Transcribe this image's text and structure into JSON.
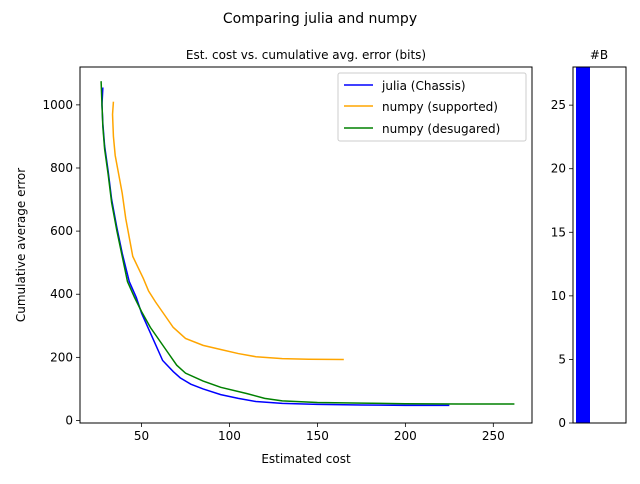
{
  "figure": {
    "suptitle": "Comparing julia and numpy"
  },
  "chart_data": [
    {
      "type": "line",
      "title": "Est. cost vs. cumulative avg. error (bits)",
      "xlabel": "Estimated cost",
      "ylabel": "Cumulative average error",
      "xlim": [
        15,
        272
      ],
      "ylim": [
        -8,
        1120
      ],
      "xticks": [
        "50",
        "100",
        "150",
        "200",
        "250"
      ],
      "yticks": [
        "0",
        "200",
        "400",
        "600",
        "800",
        "1000"
      ],
      "grid": false,
      "legend_position": "top-right",
      "series": [
        {
          "name": "julia (Chassis)",
          "color": "#0000ff",
          "points": [
            [
              28,
              1055
            ],
            [
              27.5,
              1000
            ],
            [
              28,
              940
            ],
            [
              29,
              870
            ],
            [
              31,
              790
            ],
            [
              33,
              700
            ],
            [
              36,
              610
            ],
            [
              39,
              530
            ],
            [
              43,
              440
            ],
            [
              47,
              390
            ],
            [
              50,
              340
            ],
            [
              54,
              290
            ],
            [
              58,
              240
            ],
            [
              62,
              190
            ],
            [
              68,
              155
            ],
            [
              72,
              135
            ],
            [
              78,
              115
            ],
            [
              85,
              100
            ],
            [
              95,
              82
            ],
            [
              105,
              70
            ],
            [
              115,
              60
            ],
            [
              130,
              54
            ],
            [
              150,
              51
            ],
            [
              175,
              49
            ],
            [
              200,
              48
            ],
            [
              225,
              48
            ]
          ]
        },
        {
          "name": "numpy (supported)",
          "color": "#ffa500",
          "points": [
            [
              34,
              1010
            ],
            [
              33.5,
              970
            ],
            [
              34,
              900
            ],
            [
              35,
              840
            ],
            [
              37,
              780
            ],
            [
              39,
              720
            ],
            [
              41,
              640
            ],
            [
              43,
              580
            ],
            [
              45,
              520
            ],
            [
              48,
              485
            ],
            [
              51,
              450
            ],
            [
              54,
              410
            ],
            [
              58,
              375
            ],
            [
              63,
              335
            ],
            [
              68,
              295
            ],
            [
              75,
              260
            ],
            [
              85,
              238
            ],
            [
              95,
              225
            ],
            [
              105,
              212
            ],
            [
              115,
              202
            ],
            [
              130,
              196
            ],
            [
              145,
              194
            ],
            [
              165,
              193
            ]
          ]
        },
        {
          "name": "numpy (desugared)",
          "color": "#008000",
          "points": [
            [
              27,
              1075
            ],
            [
              27.5,
              1000
            ],
            [
              28,
              930
            ],
            [
              29,
              860
            ],
            [
              31,
              780
            ],
            [
              33,
              690
            ],
            [
              36,
              600
            ],
            [
              39,
              520
            ],
            [
              42,
              440
            ],
            [
              46,
              390
            ],
            [
              50,
              345
            ],
            [
              55,
              295
            ],
            [
              60,
              255
            ],
            [
              65,
              215
            ],
            [
              70,
              175
            ],
            [
              75,
              150
            ],
            [
              85,
              125
            ],
            [
              95,
              105
            ],
            [
              110,
              85
            ],
            [
              120,
              70
            ],
            [
              130,
              62
            ],
            [
              150,
              57
            ],
            [
              175,
              55
            ],
            [
              200,
              53
            ],
            [
              230,
              52
            ],
            [
              262,
              52
            ]
          ]
        }
      ]
    },
    {
      "type": "bar",
      "title": "#B",
      "ylim": [
        0,
        28
      ],
      "yticks": [
        "0",
        "5",
        "10",
        "15",
        "20",
        "25"
      ],
      "bar_color": "#0000ff",
      "values": [
        28
      ]
    }
  ]
}
